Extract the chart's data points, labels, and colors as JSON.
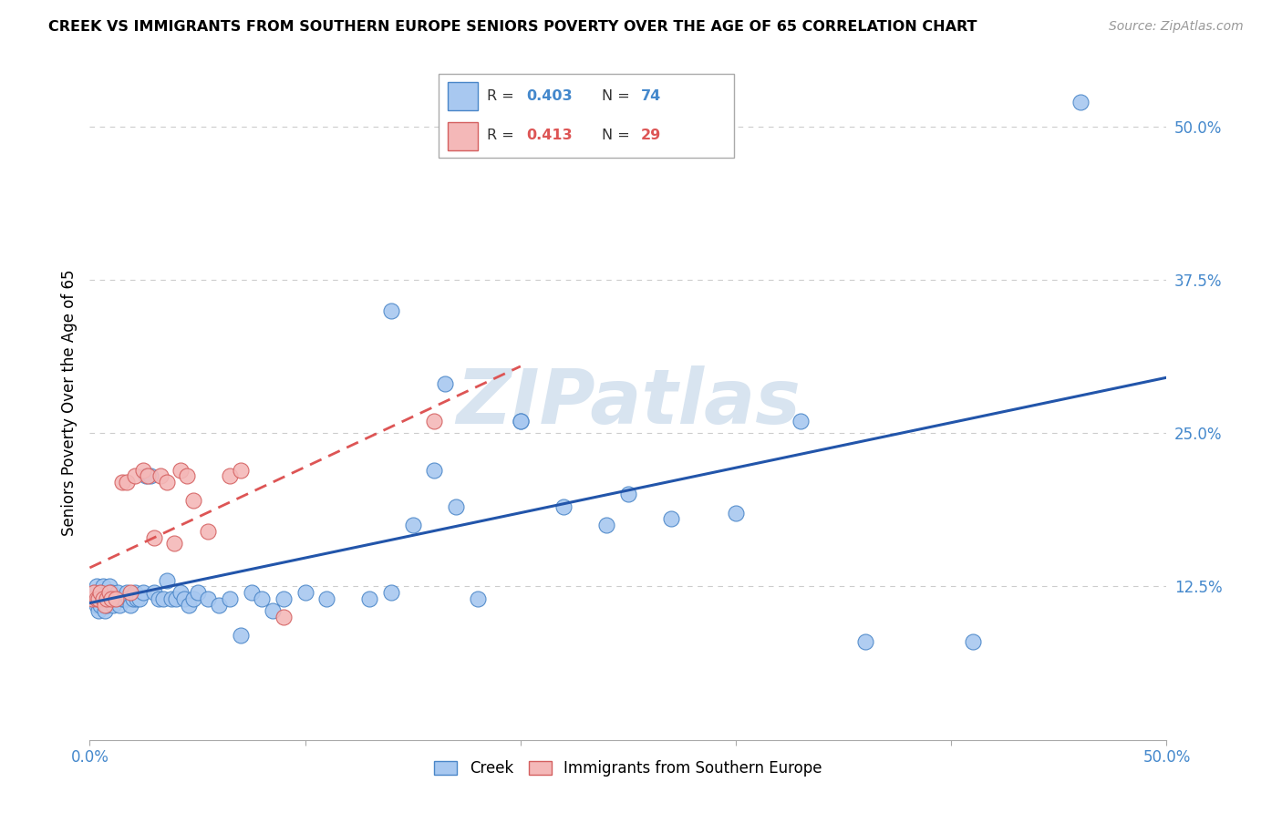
{
  "title": "CREEK VS IMMIGRANTS FROM SOUTHERN EUROPE SENIORS POVERTY OVER THE AGE OF 65 CORRELATION CHART",
  "source": "Source: ZipAtlas.com",
  "ylabel": "Seniors Poverty Over the Age of 65",
  "xlim": [
    0.0,
    0.5
  ],
  "ylim": [
    0.0,
    0.55
  ],
  "creek_color": "#a8c8f0",
  "creek_edge_color": "#4a86c8",
  "seur_color": "#f4b8b8",
  "seur_edge_color": "#d45f5f",
  "creek_line_color": "#2255aa",
  "seur_line_color": "#dd5555",
  "watermark_color": "#d8e4f0",
  "creek_x": [
    0.001,
    0.002,
    0.003,
    0.003,
    0.004,
    0.004,
    0.005,
    0.005,
    0.006,
    0.006,
    0.007,
    0.007,
    0.008,
    0.008,
    0.009,
    0.009,
    0.01,
    0.01,
    0.011,
    0.012,
    0.013,
    0.014,
    0.015,
    0.016,
    0.017,
    0.018,
    0.019,
    0.02,
    0.021,
    0.022,
    0.023,
    0.025,
    0.026,
    0.028,
    0.03,
    0.032,
    0.034,
    0.036,
    0.038,
    0.04,
    0.042,
    0.044,
    0.046,
    0.048,
    0.05,
    0.055,
    0.06,
    0.065,
    0.07,
    0.075,
    0.08,
    0.085,
    0.09,
    0.1,
    0.11,
    0.13,
    0.14,
    0.15,
    0.16,
    0.17,
    0.18,
    0.2,
    0.22,
    0.24,
    0.25,
    0.27,
    0.3,
    0.33,
    0.36,
    0.41,
    0.14,
    0.165,
    0.2,
    0.46
  ],
  "creek_y": [
    0.115,
    0.12,
    0.11,
    0.125,
    0.115,
    0.105,
    0.12,
    0.11,
    0.115,
    0.125,
    0.105,
    0.115,
    0.12,
    0.11,
    0.115,
    0.125,
    0.115,
    0.12,
    0.11,
    0.115,
    0.12,
    0.11,
    0.115,
    0.115,
    0.12,
    0.115,
    0.11,
    0.115,
    0.12,
    0.115,
    0.115,
    0.12,
    0.215,
    0.215,
    0.12,
    0.115,
    0.115,
    0.13,
    0.115,
    0.115,
    0.12,
    0.115,
    0.11,
    0.115,
    0.12,
    0.115,
    0.11,
    0.115,
    0.085,
    0.12,
    0.115,
    0.105,
    0.115,
    0.12,
    0.115,
    0.115,
    0.12,
    0.175,
    0.22,
    0.19,
    0.115,
    0.26,
    0.19,
    0.175,
    0.2,
    0.18,
    0.185,
    0.26,
    0.08,
    0.08,
    0.35,
    0.29,
    0.26,
    0.52
  ],
  "seur_x": [
    0.001,
    0.002,
    0.003,
    0.004,
    0.005,
    0.006,
    0.007,
    0.008,
    0.009,
    0.01,
    0.012,
    0.015,
    0.017,
    0.019,
    0.021,
    0.025,
    0.027,
    0.03,
    0.033,
    0.036,
    0.039,
    0.042,
    0.045,
    0.048,
    0.055,
    0.065,
    0.07,
    0.09,
    0.16
  ],
  "seur_y": [
    0.115,
    0.12,
    0.115,
    0.115,
    0.12,
    0.115,
    0.11,
    0.115,
    0.12,
    0.115,
    0.115,
    0.21,
    0.21,
    0.12,
    0.215,
    0.22,
    0.215,
    0.165,
    0.215,
    0.21,
    0.16,
    0.22,
    0.215,
    0.195,
    0.17,
    0.215,
    0.22,
    0.1,
    0.26
  ]
}
